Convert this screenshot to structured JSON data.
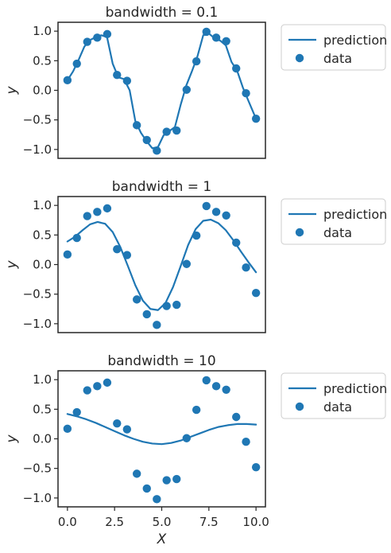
{
  "colors": {
    "series": "#1f77b4",
    "axis": "#262626",
    "legend_border": "#cccccc"
  },
  "legend": {
    "line_label": "prediction",
    "points_label": "data",
    "placement": "outside-right"
  },
  "chart_data": [
    {
      "type": "scatter",
      "title": "bandwidth = 0.1",
      "xlabel": "",
      "ylabel": "y",
      "xlim": [
        -0.5,
        10.5
      ],
      "ylim": [
        -1.15,
        1.15
      ],
      "xticks_visible": false,
      "yticks": [
        1.0,
        0.5,
        0.0,
        -0.5,
        -1.0
      ],
      "ytick_labels": [
        "1.0",
        "0.5",
        "0.0",
        "−0.5",
        "−1.0"
      ],
      "grid": false,
      "data": {
        "x": [
          0.0,
          0.5,
          1.05,
          1.58,
          2.11,
          2.63,
          3.16,
          3.68,
          4.21,
          4.74,
          5.26,
          5.79,
          6.32,
          6.84,
          7.37,
          7.89,
          8.42,
          8.95,
          9.47,
          10.0
        ],
        "y": [
          0.17,
          0.45,
          0.82,
          0.89,
          0.95,
          0.26,
          0.16,
          -0.59,
          -0.84,
          -1.02,
          -0.7,
          -0.68,
          0.01,
          0.49,
          0.99,
          0.89,
          0.83,
          0.37,
          -0.05,
          -0.48
        ]
      },
      "prediction": {
        "x": [
          0.0,
          0.3,
          0.6,
          0.9,
          1.2,
          1.5,
          1.8,
          2.1,
          2.4,
          2.7,
          3.0,
          3.3,
          3.6,
          3.9,
          4.2,
          4.5,
          4.8,
          5.1,
          5.4,
          5.7,
          6.0,
          6.3,
          6.6,
          6.9,
          7.2,
          7.5,
          7.8,
          8.1,
          8.4,
          8.7,
          9.0,
          9.3,
          9.6,
          10.0
        ],
        "y": [
          0.17,
          0.32,
          0.52,
          0.74,
          0.85,
          0.9,
          0.93,
          0.9,
          0.45,
          0.22,
          0.19,
          0.0,
          -0.52,
          -0.72,
          -0.86,
          -0.98,
          -0.96,
          -0.76,
          -0.69,
          -0.62,
          -0.25,
          0.08,
          0.32,
          0.58,
          0.93,
          0.96,
          0.88,
          0.84,
          0.76,
          0.48,
          0.33,
          0.05,
          -0.18,
          -0.48
        ]
      }
    },
    {
      "type": "scatter",
      "title": "bandwidth = 1",
      "xlabel": "",
      "ylabel": "y",
      "xlim": [
        -0.5,
        10.5
      ],
      "ylim": [
        -1.15,
        1.15
      ],
      "xticks_visible": false,
      "yticks": [
        1.0,
        0.5,
        0.0,
        -0.5,
        -1.0
      ],
      "ytick_labels": [
        "1.0",
        "0.5",
        "0.0",
        "−0.5",
        "−1.0"
      ],
      "grid": false,
      "data": {
        "x": [
          0.0,
          0.5,
          1.05,
          1.58,
          2.11,
          2.63,
          3.16,
          3.68,
          4.21,
          4.74,
          5.26,
          5.79,
          6.32,
          6.84,
          7.37,
          7.89,
          8.42,
          8.95,
          9.47,
          10.0
        ],
        "y": [
          0.17,
          0.45,
          0.82,
          0.89,
          0.95,
          0.26,
          0.16,
          -0.59,
          -0.84,
          -1.02,
          -0.7,
          -0.68,
          0.01,
          0.49,
          0.99,
          0.89,
          0.83,
          0.37,
          -0.05,
          -0.48
        ]
      },
      "prediction": {
        "x": [
          0.0,
          0.4,
          0.8,
          1.2,
          1.6,
          2.0,
          2.4,
          2.8,
          3.2,
          3.6,
          4.0,
          4.4,
          4.8,
          5.2,
          5.6,
          6.0,
          6.4,
          6.8,
          7.2,
          7.6,
          8.0,
          8.4,
          8.8,
          9.2,
          9.6,
          10.0
        ],
        "y": [
          0.39,
          0.47,
          0.58,
          0.68,
          0.72,
          0.69,
          0.55,
          0.3,
          -0.02,
          -0.35,
          -0.61,
          -0.75,
          -0.77,
          -0.65,
          -0.38,
          -0.03,
          0.33,
          0.6,
          0.74,
          0.76,
          0.7,
          0.58,
          0.41,
          0.22,
          0.04,
          -0.13
        ]
      }
    },
    {
      "type": "scatter",
      "title": "bandwidth = 10",
      "xlabel": "X",
      "ylabel": "y",
      "xlim": [
        -0.5,
        10.5
      ],
      "ylim": [
        -1.15,
        1.15
      ],
      "xticks_visible": true,
      "xticks": [
        0.0,
        2.5,
        5.0,
        7.5,
        10.0
      ],
      "xtick_labels": [
        "0.0",
        "2.5",
        "5.0",
        "7.5",
        "10.0"
      ],
      "yticks": [
        1.0,
        0.5,
        0.0,
        -0.5,
        -1.0
      ],
      "ytick_labels": [
        "1.0",
        "0.5",
        "0.0",
        "−0.5",
        "−1.0"
      ],
      "grid": false,
      "data": {
        "x": [
          0.0,
          0.5,
          1.05,
          1.58,
          2.11,
          2.63,
          3.16,
          3.68,
          4.21,
          4.74,
          5.26,
          5.79,
          6.32,
          6.84,
          7.37,
          7.89,
          8.42,
          8.95,
          9.47,
          10.0
        ],
        "y": [
          0.17,
          0.45,
          0.82,
          0.89,
          0.95,
          0.26,
          0.16,
          -0.59,
          -0.84,
          -1.02,
          -0.7,
          -0.68,
          0.01,
          0.49,
          0.99,
          0.89,
          0.83,
          0.37,
          -0.05,
          -0.48
        ]
      },
      "prediction": {
        "x": [
          0.0,
          0.5,
          1.0,
          1.5,
          2.0,
          2.5,
          3.0,
          3.5,
          4.0,
          4.5,
          5.0,
          5.5,
          6.0,
          6.5,
          7.0,
          7.5,
          8.0,
          8.5,
          9.0,
          9.5,
          10.0
        ],
        "y": [
          0.42,
          0.38,
          0.33,
          0.27,
          0.2,
          0.13,
          0.06,
          0.0,
          -0.05,
          -0.08,
          -0.09,
          -0.07,
          -0.03,
          0.03,
          0.09,
          0.15,
          0.2,
          0.23,
          0.25,
          0.25,
          0.24
        ]
      }
    }
  ]
}
